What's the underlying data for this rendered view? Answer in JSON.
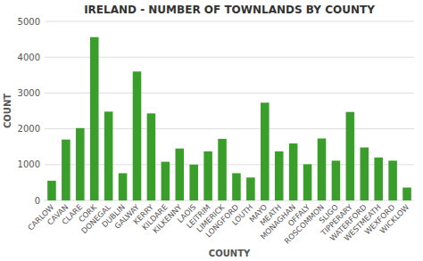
{
  "chart_data": {
    "type": "bar",
    "title": "IRELAND - NUMBER OF TOWNLANDS BY COUNTY",
    "xlabel": "COUNTY",
    "ylabel": "COUNT",
    "categories": [
      "CARLOW",
      "CAVAN",
      "CLARE",
      "CORK",
      "DONEGAL",
      "DUBLIN",
      "GALWAY",
      "KERRY",
      "KILDARE",
      "KILKENNY",
      "LAOIS",
      "LEITRIM",
      "LIMERICK",
      "LONGFORD",
      "LOUTH",
      "MAYO",
      "MEATH",
      "MONAGHAN",
      "OFFALY",
      "ROSCOMMON",
      "SLIGO",
      "TIPPERARY",
      "WATERFORD",
      "WESTMEATH",
      "WEXFORD",
      "WICKLOW"
    ],
    "values": [
      550,
      1700,
      2020,
      4560,
      2480,
      760,
      3600,
      2430,
      1080,
      1450,
      1000,
      1370,
      1720,
      760,
      640,
      2730,
      1370,
      1590,
      1010,
      1730,
      1110,
      2470,
      1480,
      1200,
      1110,
      360
    ],
    "color": "#3a9e2b",
    "ylim": [
      0,
      5000
    ],
    "yticks": [
      0,
      1000,
      2000,
      3000,
      4000,
      5000
    ],
    "grid": true
  }
}
